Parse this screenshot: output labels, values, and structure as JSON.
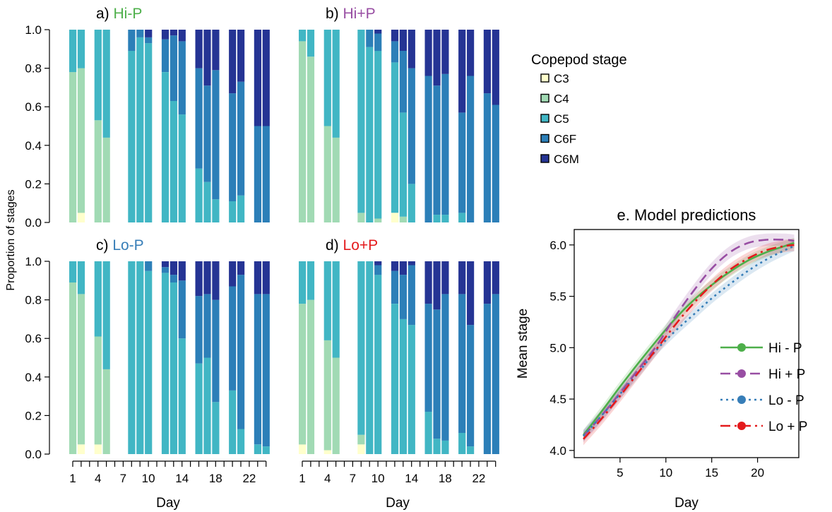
{
  "stage_colors": {
    "C3": "#ffffcc",
    "C4": "#a1dab4",
    "C5": "#41b6c4",
    "C6F": "#2c7fb8",
    "C6M": "#253494"
  },
  "treatment_colors": {
    "Hi-P": "#4daf4a",
    "Hi+P": "#984ea3",
    "Lo-P": "#377eb8",
    "Lo+P": "#e41a1c"
  },
  "legend": {
    "title": "Copepod stage",
    "items": [
      "C3",
      "C4",
      "C5",
      "C6F",
      "C6M"
    ]
  },
  "shared_labels": {
    "ylabel": "Proportion of stages",
    "xlabel": "Day",
    "day_ticks": [
      "1",
      "4",
      "7",
      "10",
      "14",
      "18",
      "22"
    ],
    "y_ticks": [
      "0.0",
      "0.2",
      "0.4",
      "0.6",
      "0.8",
      "1.0"
    ]
  },
  "chart_data": [
    {
      "type": "bar",
      "stacked": true,
      "prefix": "a)",
      "title": "Hi-P",
      "xlabel": "Day",
      "ylabel": "Proportion of stages",
      "ylim": [
        0,
        1
      ],
      "series_order": [
        "C3",
        "C4",
        "C5",
        "C6F",
        "C6M"
      ],
      "bars": [
        {
          "day": 1,
          "C3": 0,
          "C4": 0.78,
          "C5": 0.22,
          "C6F": 0,
          "C6M": 0
        },
        {
          "day": 2,
          "C3": 0.05,
          "C4": 0.75,
          "C5": 0.2,
          "C6F": 0,
          "C6M": 0
        },
        {
          "day": 4,
          "C3": 0,
          "C4": 0.53,
          "C5": 0.47,
          "C6F": 0,
          "C6M": 0
        },
        {
          "day": 5,
          "C3": 0,
          "C4": 0.44,
          "C5": 0.56,
          "C6F": 0,
          "C6M": 0
        },
        {
          "day": 8,
          "C3": 0,
          "C4": 0,
          "C5": 0.89,
          "C6F": 0.11,
          "C6M": 0
        },
        {
          "day": 9,
          "C3": 0,
          "C4": 0,
          "C5": 0.96,
          "C6F": 0.04,
          "C6M": 0
        },
        {
          "day": 10,
          "C3": 0,
          "C4": 0,
          "C5": 0.93,
          "C6F": 0.03,
          "C6M": 0.04
        },
        {
          "day": 12,
          "C3": 0,
          "C4": 0,
          "C5": 0.78,
          "C6F": 0.17,
          "C6M": 0.05
        },
        {
          "day": 13,
          "C3": 0,
          "C4": 0,
          "C5": 0.63,
          "C6F": 0.34,
          "C6M": 0.03
        },
        {
          "day": 14,
          "C3": 0,
          "C4": 0,
          "C5": 0.56,
          "C6F": 0.38,
          "C6M": 0.06
        },
        {
          "day": 16,
          "C3": 0,
          "C4": 0,
          "C5": 0.28,
          "C6F": 0.52,
          "C6M": 0.2
        },
        {
          "day": 17,
          "C3": 0,
          "C4": 0,
          "C5": 0.21,
          "C6F": 0.5,
          "C6M": 0.29
        },
        {
          "day": 18,
          "C3": 0,
          "C4": 0,
          "C5": 0.12,
          "C6F": 0.67,
          "C6M": 0.21
        },
        {
          "day": 20,
          "C3": 0,
          "C4": 0,
          "C5": 0.11,
          "C6F": 0.56,
          "C6M": 0.33
        },
        {
          "day": 21,
          "C3": 0,
          "C4": 0,
          "C5": 0.14,
          "C6F": 0.59,
          "C6M": 0.27
        },
        {
          "day": 23,
          "C3": 0,
          "C4": 0,
          "C5": 0,
          "C6F": 0.5,
          "C6M": 0.5
        },
        {
          "day": 24,
          "C3": 0,
          "C4": 0,
          "C5": 0,
          "C6F": 0.5,
          "C6M": 0.5
        }
      ]
    },
    {
      "type": "bar",
      "stacked": true,
      "prefix": "b)",
      "title": "Hi+P",
      "xlabel": "Day",
      "ylabel": "Proportion of stages",
      "ylim": [
        0,
        1
      ],
      "series_order": [
        "C3",
        "C4",
        "C5",
        "C6F",
        "C6M"
      ],
      "bars": [
        {
          "day": 1,
          "C3": 0,
          "C4": 0.94,
          "C5": 0.06,
          "C6F": 0,
          "C6M": 0
        },
        {
          "day": 2,
          "C3": 0,
          "C4": 0.86,
          "C5": 0.14,
          "C6F": 0,
          "C6M": 0
        },
        {
          "day": 4,
          "C3": 0,
          "C4": 0.5,
          "C5": 0.5,
          "C6F": 0,
          "C6M": 0
        },
        {
          "day": 5,
          "C3": 0,
          "C4": 0.44,
          "C5": 0.56,
          "C6F": 0,
          "C6M": 0
        },
        {
          "day": 8,
          "C3": 0,
          "C4": 0.05,
          "C5": 0.95,
          "C6F": 0,
          "C6M": 0
        },
        {
          "day": 9,
          "C3": 0,
          "C4": 0,
          "C5": 0.91,
          "C6F": 0.09,
          "C6M": 0
        },
        {
          "day": 10,
          "C3": 0,
          "C4": 0.02,
          "C5": 0.87,
          "C6F": 0.09,
          "C6M": 0.02
        },
        {
          "day": 12,
          "C3": 0.05,
          "C4": 0,
          "C5": 0.78,
          "C6F": 0.11,
          "C6M": 0.06
        },
        {
          "day": 13,
          "C3": 0,
          "C4": 0.03,
          "C5": 0.54,
          "C6F": 0.32,
          "C6M": 0.11
        },
        {
          "day": 14,
          "C3": 0,
          "C4": 0,
          "C5": 0.2,
          "C6F": 0.6,
          "C6M": 0.2
        },
        {
          "day": 16,
          "C3": 0,
          "C4": 0,
          "C5": 0,
          "C6F": 0.76,
          "C6M": 0.24
        },
        {
          "day": 17,
          "C3": 0,
          "C4": 0,
          "C5": 0.04,
          "C6F": 0.67,
          "C6M": 0.29
        },
        {
          "day": 18,
          "C3": 0,
          "C4": 0,
          "C5": 0.04,
          "C6F": 0.73,
          "C6M": 0.23
        },
        {
          "day": 20,
          "C3": 0,
          "C4": 0,
          "C5": 0.05,
          "C6F": 0.52,
          "C6M": 0.43
        },
        {
          "day": 21,
          "C3": 0,
          "C4": 0,
          "C5": 0,
          "C6F": 0.76,
          "C6M": 0.24
        },
        {
          "day": 23,
          "C3": 0,
          "C4": 0,
          "C5": 0,
          "C6F": 0.67,
          "C6M": 0.33
        },
        {
          "day": 24,
          "C3": 0,
          "C4": 0,
          "C5": 0,
          "C6F": 0.61,
          "C6M": 0.39
        }
      ]
    },
    {
      "type": "bar",
      "stacked": true,
      "prefix": "c)",
      "title": "Lo-P",
      "xlabel": "Day",
      "ylabel": "Proportion of stages",
      "ylim": [
        0,
        1
      ],
      "series_order": [
        "C3",
        "C4",
        "C5",
        "C6F",
        "C6M"
      ],
      "bars": [
        {
          "day": 1,
          "C3": 0,
          "C4": 0.89,
          "C5": 0.11,
          "C6F": 0,
          "C6M": 0
        },
        {
          "day": 2,
          "C3": 0.05,
          "C4": 0.78,
          "C5": 0.17,
          "C6F": 0,
          "C6M": 0
        },
        {
          "day": 4,
          "C3": 0.05,
          "C4": 0.56,
          "C5": 0.39,
          "C6F": 0,
          "C6M": 0
        },
        {
          "day": 5,
          "C3": 0,
          "C4": 0.44,
          "C5": 0.56,
          "C6F": 0,
          "C6M": 0
        },
        {
          "day": 8,
          "C3": 0,
          "C4": 0,
          "C5": 1.0,
          "C6F": 0,
          "C6M": 0
        },
        {
          "day": 9,
          "C3": 0,
          "C4": 0,
          "C5": 1.0,
          "C6F": 0,
          "C6M": 0
        },
        {
          "day": 10,
          "C3": 0,
          "C4": 0,
          "C5": 0.95,
          "C6F": 0.05,
          "C6M": 0
        },
        {
          "day": 12,
          "C3": 0,
          "C4": 0,
          "C5": 0.94,
          "C6F": 0.03,
          "C6M": 0.03
        },
        {
          "day": 13,
          "C3": 0,
          "C4": 0,
          "C5": 0.89,
          "C6F": 0.04,
          "C6M": 0.07
        },
        {
          "day": 14,
          "C3": 0,
          "C4": 0,
          "C5": 0.6,
          "C6F": 0.3,
          "C6M": 0.1
        },
        {
          "day": 16,
          "C3": 0,
          "C4": 0,
          "C5": 0.47,
          "C6F": 0.35,
          "C6M": 0.18
        },
        {
          "day": 17,
          "C3": 0,
          "C4": 0,
          "C5": 0.5,
          "C6F": 0.33,
          "C6M": 0.17
        },
        {
          "day": 18,
          "C3": 0,
          "C4": 0,
          "C5": 0.27,
          "C6F": 0.53,
          "C6M": 0.2
        },
        {
          "day": 20,
          "C3": 0,
          "C4": 0,
          "C5": 0.33,
          "C6F": 0.54,
          "C6M": 0.13
        },
        {
          "day": 21,
          "C3": 0,
          "C4": 0,
          "C5": 0.13,
          "C6F": 0.8,
          "C6M": 0.07
        },
        {
          "day": 23,
          "C3": 0,
          "C4": 0,
          "C5": 0.05,
          "C6F": 0.78,
          "C6M": 0.17
        },
        {
          "day": 24,
          "C3": 0,
          "C4": 0,
          "C5": 0.04,
          "C6F": 0.79,
          "C6M": 0.17
        }
      ]
    },
    {
      "type": "bar",
      "stacked": true,
      "prefix": "d)",
      "title": "Lo+P",
      "xlabel": "Day",
      "ylabel": "Proportion of stages",
      "ylim": [
        0,
        1
      ],
      "series_order": [
        "C3",
        "C4",
        "C5",
        "C6F",
        "C6M"
      ],
      "bars": [
        {
          "day": 1,
          "C3": 0.05,
          "C4": 0.73,
          "C5": 0.22,
          "C6F": 0,
          "C6M": 0
        },
        {
          "day": 2,
          "C3": 0,
          "C4": 0.8,
          "C5": 0.2,
          "C6F": 0,
          "C6M": 0
        },
        {
          "day": 4,
          "C3": 0.02,
          "C4": 0.57,
          "C5": 0.41,
          "C6F": 0,
          "C6M": 0
        },
        {
          "day": 5,
          "C3": 0,
          "C4": 0.5,
          "C5": 0.5,
          "C6F": 0,
          "C6M": 0
        },
        {
          "day": 8,
          "C3": 0.05,
          "C4": 0.05,
          "C5": 0.9,
          "C6F": 0,
          "C6M": 0
        },
        {
          "day": 9,
          "C3": 0,
          "C4": 0,
          "C5": 1.0,
          "C6F": 0,
          "C6M": 0
        },
        {
          "day": 10,
          "C3": 0,
          "C4": 0,
          "C5": 0.93,
          "C6F": 0.05,
          "C6M": 0.02
        },
        {
          "day": 12,
          "C3": 0,
          "C4": 0,
          "C5": 0.78,
          "C6F": 0.17,
          "C6M": 0.05
        },
        {
          "day": 13,
          "C3": 0,
          "C4": 0,
          "C5": 0.7,
          "C6F": 0.23,
          "C6M": 0.07
        },
        {
          "day": 14,
          "C3": 0,
          "C4": 0,
          "C5": 0.67,
          "C6F": 0.31,
          "C6M": 0.02
        },
        {
          "day": 16,
          "C3": 0,
          "C4": 0,
          "C5": 0.22,
          "C6F": 0.56,
          "C6M": 0.22
        },
        {
          "day": 17,
          "C3": 0,
          "C4": 0,
          "C5": 0.08,
          "C6F": 0.67,
          "C6M": 0.25
        },
        {
          "day": 18,
          "C3": 0,
          "C4": 0,
          "C5": 0.07,
          "C6F": 0.76,
          "C6M": 0.17
        },
        {
          "day": 20,
          "C3": 0,
          "C4": 0,
          "C5": 0.11,
          "C6F": 0.72,
          "C6M": 0.17
        },
        {
          "day": 21,
          "C3": 0,
          "C4": 0,
          "C5": 0.04,
          "C6F": 0.63,
          "C6M": 0.33
        },
        {
          "day": 23,
          "C3": 0,
          "C4": 0,
          "C5": 0,
          "C6F": 0.78,
          "C6M": 0.22
        },
        {
          "day": 24,
          "C3": 0,
          "C4": 0,
          "C5": 0,
          "C6F": 0.83,
          "C6M": 0.17
        }
      ]
    },
    {
      "type": "line",
      "title": "e. Model predictions",
      "xlabel": "Day",
      "ylabel": "Mean stage",
      "xlim": [
        0,
        24.5
      ],
      "ylim": [
        3.93,
        6.15
      ],
      "xticks": [
        5,
        10,
        15,
        20
      ],
      "yticks": [
        4.0,
        4.5,
        5.0,
        5.5,
        6.0
      ],
      "series": [
        {
          "name": "Hi - P",
          "color": "#4daf4a",
          "dash": "solid",
          "x": [
            1,
            3,
            5,
            7,
            9,
            11,
            13,
            15,
            17,
            19,
            21,
            23,
            24
          ],
          "y": [
            4.15,
            4.38,
            4.62,
            4.85,
            5.07,
            5.28,
            5.46,
            5.61,
            5.74,
            5.85,
            5.93,
            5.99,
            6.02
          ],
          "band": 0.05
        },
        {
          "name": "Hi + P",
          "color": "#984ea3",
          "dash": "dashed",
          "x": [
            1,
            3,
            5,
            7,
            9,
            11,
            13,
            15,
            17,
            19,
            21,
            23,
            24
          ],
          "y": [
            4.14,
            4.34,
            4.56,
            4.79,
            5.02,
            5.3,
            5.55,
            5.77,
            5.93,
            6.02,
            6.05,
            6.05,
            6.04
          ],
          "band": 0.06
        },
        {
          "name": "Lo - P",
          "color": "#377eb8",
          "dash": "dotted",
          "x": [
            1,
            3,
            5,
            7,
            9,
            11,
            13,
            15,
            17,
            19,
            21,
            23,
            24
          ],
          "y": [
            4.14,
            4.34,
            4.55,
            4.76,
            4.98,
            5.16,
            5.32,
            5.48,
            5.62,
            5.75,
            5.86,
            5.95,
            5.99
          ],
          "band": 0.05
        },
        {
          "name": "Lo + P",
          "color": "#e41a1c",
          "dash": "dashdot",
          "x": [
            1,
            3,
            5,
            7,
            9,
            11,
            13,
            15,
            17,
            19,
            21,
            23,
            24
          ],
          "y": [
            4.11,
            4.31,
            4.53,
            4.76,
            4.99,
            5.22,
            5.43,
            5.61,
            5.76,
            5.87,
            5.95,
            5.99,
            6.0
          ],
          "band": 0.06
        }
      ],
      "legend_position": "bottom-right"
    }
  ]
}
